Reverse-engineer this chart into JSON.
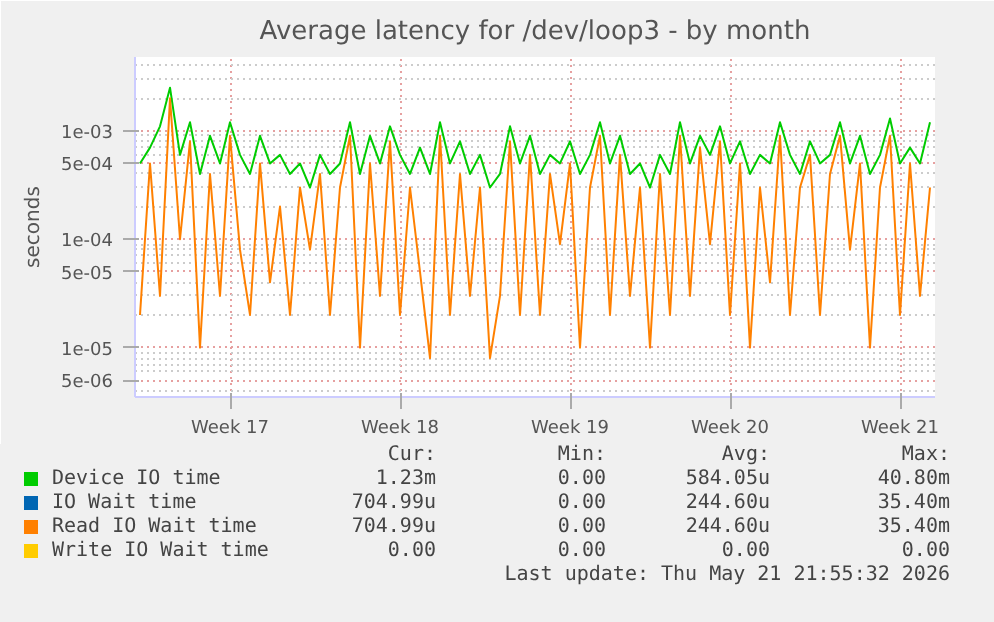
{
  "chart_data": {
    "type": "line",
    "title": "Average latency for /dev/loop3 - by month",
    "ylabel": "seconds",
    "log": "y",
    "ylim": [
      3.5e-06,
      0.0048
    ],
    "yticks": [
      {
        "value": 5e-06,
        "label": "5e-06"
      },
      {
        "value": 1e-05,
        "label": "1e-05"
      },
      {
        "value": 5e-05,
        "label": "5e-05"
      },
      {
        "value": 0.0001,
        "label": "1e-04"
      },
      {
        "value": 0.0005,
        "label": "5e-04"
      },
      {
        "value": 0.001,
        "label": "1e-03"
      }
    ],
    "grid": true,
    "legend": "bottom",
    "categories": [
      null,
      null,
      null,
      null,
      null,
      null,
      null,
      null,
      null,
      "Week 17",
      null,
      null,
      null,
      null,
      null,
      null,
      null,
      null,
      null,
      null,
      null,
      null,
      null,
      null,
      null,
      null,
      "Week 18",
      null,
      null,
      null,
      null,
      null,
      null,
      null,
      null,
      null,
      null,
      null,
      null,
      null,
      null,
      null,
      null,
      "Week 19",
      null,
      null,
      null,
      null,
      null,
      null,
      null,
      null,
      null,
      null,
      null,
      null,
      null,
      null,
      null,
      "Week 20",
      null,
      null,
      null,
      null,
      null,
      null,
      null,
      null,
      null,
      null,
      null,
      null,
      null,
      null,
      null,
      null,
      "Week 21",
      null,
      null,
      null
    ],
    "series": [
      {
        "name": "Device IO time",
        "color": "#00cc00",
        "values": [
          0.0005,
          0.0007,
          0.0011,
          0.0025,
          0.0006,
          0.0012,
          0.0004,
          0.0009,
          0.0005,
          0.0012,
          0.0006,
          0.0004,
          0.0009,
          0.0005,
          0.0006,
          0.0004,
          0.0005,
          0.0003,
          0.0006,
          0.0004,
          0.0005,
          0.0012,
          0.0004,
          0.0009,
          0.0005,
          0.0011,
          0.0006,
          0.0004,
          0.0007,
          0.0004,
          0.0012,
          0.0005,
          0.0008,
          0.0004,
          0.0006,
          0.0003,
          0.0004,
          0.0011,
          0.0005,
          0.0009,
          0.0004,
          0.0006,
          0.0005,
          0.0008,
          0.0004,
          0.0006,
          0.0012,
          0.0005,
          0.0009,
          0.0004,
          0.0005,
          0.0003,
          0.0006,
          0.0004,
          0.0012,
          0.0005,
          0.0009,
          0.0006,
          0.0011,
          0.0005,
          0.0008,
          0.0004,
          0.0006,
          0.0005,
          0.0012,
          0.0006,
          0.0004,
          0.0008,
          0.0005,
          0.0006,
          0.0012,
          0.0005,
          0.0009,
          0.0004,
          0.0006,
          0.0013,
          0.0005,
          0.0007,
          0.0005,
          0.0012
        ]
      },
      {
        "name": "IO Wait time",
        "color": "#0066b3",
        "values": [
          null,
          null,
          null,
          null,
          null,
          null,
          null,
          null,
          null,
          null,
          null,
          null,
          null,
          null,
          null,
          null,
          null,
          null,
          null,
          null,
          null,
          null,
          null,
          null,
          null,
          null,
          null,
          null,
          null,
          null,
          null,
          null,
          null,
          null,
          null,
          null,
          null,
          null,
          null,
          null,
          null,
          null,
          null,
          null,
          null,
          null,
          null,
          null,
          null,
          null,
          null,
          null,
          null,
          null,
          null,
          null,
          null,
          null,
          null,
          null,
          null,
          null,
          null,
          null,
          null,
          null,
          null,
          null,
          null,
          null,
          null,
          null,
          null,
          null,
          null,
          null,
          null,
          null,
          null,
          null
        ]
      },
      {
        "name": "Read IO Wait time",
        "color": "#ff8000",
        "values": [
          2e-05,
          0.0005,
          3e-05,
          0.002,
          0.0001,
          0.0008,
          1e-05,
          0.0004,
          3e-05,
          0.0009,
          8e-05,
          2e-05,
          0.0005,
          4e-05,
          0.0002,
          2e-05,
          0.0003,
          8e-05,
          0.0004,
          2e-05,
          0.0003,
          0.0009,
          1e-05,
          0.0005,
          3e-05,
          0.0008,
          2e-05,
          0.0003,
          5e-05,
          8e-06,
          0.0009,
          2e-05,
          0.0004,
          3e-05,
          0.0003,
          8e-06,
          3e-05,
          0.0008,
          2e-05,
          0.0006,
          2e-05,
          0.0004,
          9e-05,
          0.0005,
          1e-05,
          0.0003,
          0.0009,
          2e-05,
          0.0006,
          3e-05,
          0.0003,
          1e-05,
          0.0004,
          2e-05,
          0.0009,
          3e-05,
          0.0007,
          9e-05,
          0.0008,
          2e-05,
          0.0005,
          1e-05,
          0.0003,
          4e-05,
          0.0009,
          2e-05,
          0.0003,
          0.0006,
          2e-05,
          0.0004,
          0.0009,
          8e-05,
          0.0005,
          1e-05,
          0.0003,
          0.0009,
          2e-05,
          0.0005,
          3e-05,
          0.0003
        ]
      },
      {
        "name": "Write IO Wait time",
        "color": "#ffcc00",
        "values": [
          null,
          null,
          null,
          null,
          null,
          null,
          null,
          null,
          null,
          null,
          null,
          null,
          null,
          null,
          null,
          null,
          null,
          null,
          null,
          null,
          null,
          null,
          null,
          null,
          null,
          null,
          null,
          null,
          null,
          null,
          null,
          null,
          null,
          null,
          null,
          null,
          null,
          null,
          null,
          null,
          null,
          null,
          null,
          null,
          null,
          null,
          null,
          null,
          null,
          null,
          null,
          null,
          null,
          null,
          null,
          null,
          null,
          null,
          null,
          null,
          null,
          null,
          null,
          null,
          null,
          null,
          null,
          null,
          null,
          null,
          null,
          null,
          null,
          null,
          null,
          null,
          null,
          null,
          null,
          null
        ]
      }
    ],
    "annotations": [
      "Cur:",
      "Min:",
      "Avg:",
      "Max:",
      "1.23m",
      "0.00",
      "584.05u",
      "40.80m",
      "704.99u",
      "0.00",
      "244.60u",
      "35.40m",
      "704.99u",
      "0.00",
      "244.60u",
      "35.40m",
      "0.00",
      "0.00",
      "0.00",
      "0.00",
      "Last update: Thu May 21 21:55:32 2026"
    ]
  }
}
